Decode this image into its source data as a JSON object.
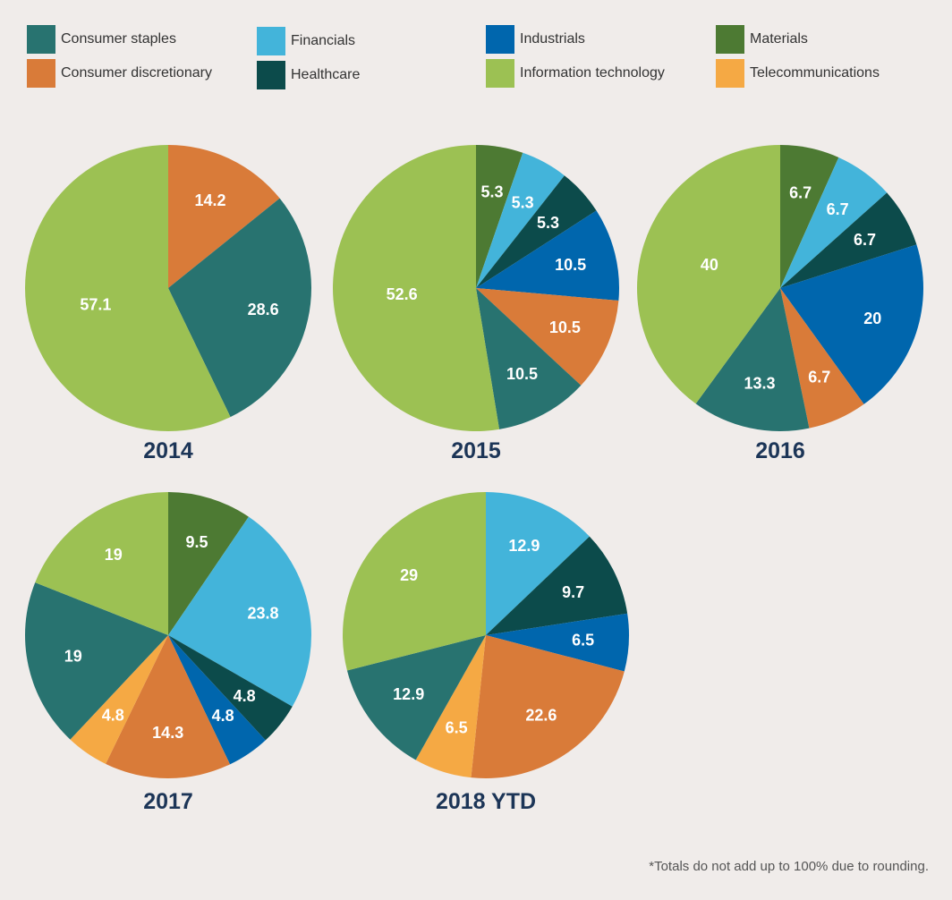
{
  "colors": {
    "consumer_staples": "#287370",
    "consumer_discretionary": "#d97b39",
    "financials": "#43b4da",
    "healthcare": "#0c4b4b",
    "industrials": "#0066ad",
    "information_technology": "#9cc153",
    "materials": "#4d7a33",
    "telecommunications": "#f5a944"
  },
  "legend": [
    {
      "key": "consumer_staples",
      "label": "Consumer staples"
    },
    {
      "key": "consumer_discretionary",
      "label": "Consumer discretionary"
    },
    {
      "key": "financials",
      "label": "Financials"
    },
    {
      "key": "healthcare",
      "label": "Healthcare"
    },
    {
      "key": "industrials",
      "label": "Industrials"
    },
    {
      "key": "information_technology",
      "label": "Information technology"
    },
    {
      "key": "materials",
      "label": "Materials"
    },
    {
      "key": "telecommunications",
      "label": "Telecommunications"
    }
  ],
  "footnote": "*Totals do not add up to 100% due to rounding.",
  "chart_data": [
    {
      "type": "pie",
      "title": "2014",
      "slices": [
        {
          "key": "consumer_discretionary",
          "value": 14.2
        },
        {
          "key": "consumer_staples",
          "value": 28.6
        },
        {
          "key": "information_technology",
          "value": 57.1
        }
      ]
    },
    {
      "type": "pie",
      "title": "2015",
      "slices": [
        {
          "key": "materials",
          "value": 5.3
        },
        {
          "key": "financials",
          "value": 5.3
        },
        {
          "key": "healthcare",
          "value": 5.3
        },
        {
          "key": "industrials",
          "value": 10.5
        },
        {
          "key": "consumer_discretionary",
          "value": 10.5
        },
        {
          "key": "consumer_staples",
          "value": 10.5
        },
        {
          "key": "information_technology",
          "value": 52.6
        }
      ]
    },
    {
      "type": "pie",
      "title": "2016",
      "slices": [
        {
          "key": "materials",
          "value": 6.7
        },
        {
          "key": "financials",
          "value": 6.7
        },
        {
          "key": "healthcare",
          "value": 6.7
        },
        {
          "key": "industrials",
          "value": 20
        },
        {
          "key": "consumer_discretionary",
          "value": 6.7
        },
        {
          "key": "consumer_staples",
          "value": 13.3
        },
        {
          "key": "information_technology",
          "value": 40
        }
      ]
    },
    {
      "type": "pie",
      "title": "2017",
      "slices": [
        {
          "key": "materials",
          "value": 9.5
        },
        {
          "key": "financials",
          "value": 23.8
        },
        {
          "key": "healthcare",
          "value": 4.8
        },
        {
          "key": "industrials",
          "value": 4.8
        },
        {
          "key": "consumer_discretionary",
          "value": 14.3
        },
        {
          "key": "telecommunications",
          "value": 4.8
        },
        {
          "key": "consumer_staples",
          "value": 19
        },
        {
          "key": "information_technology",
          "value": 19
        }
      ]
    },
    {
      "type": "pie",
      "title": "2018 YTD",
      "slices": [
        {
          "key": "financials",
          "value": 12.9
        },
        {
          "key": "healthcare",
          "value": 9.7
        },
        {
          "key": "industrials",
          "value": 6.5
        },
        {
          "key": "consumer_discretionary",
          "value": 22.6
        },
        {
          "key": "telecommunications",
          "value": 6.5
        },
        {
          "key": "consumer_staples",
          "value": 12.9
        },
        {
          "key": "information_technology",
          "value": 29
        }
      ]
    }
  ]
}
